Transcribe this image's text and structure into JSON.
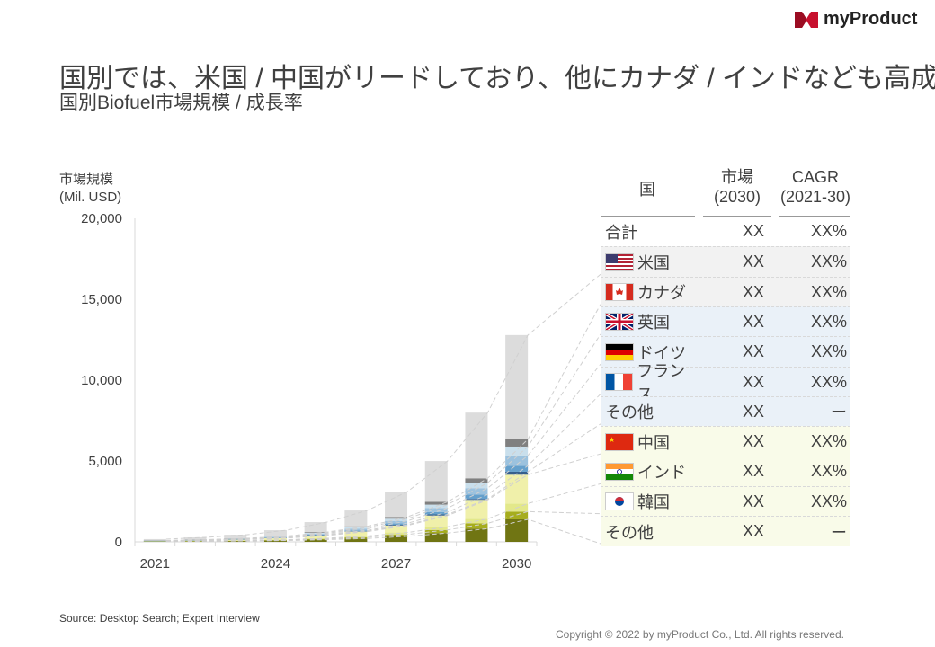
{
  "title": "国別では、米国 / 中国がリードしており、他にカナダ / インドなども高成長",
  "subtitle": "国別Biofuel市場規模 / 成長率",
  "logo": "myProduct",
  "source": "Source: Desktop Search; Expert Interview",
  "copyright": "Copyright © 2022 by myProduct Co., Ltd.  All rights reserved.",
  "chart_data": {
    "type": "bar",
    "stacked": true,
    "ylabel": "市場規模\n(Mil. USD)",
    "ylabel_lines": [
      "市場規模",
      "(Mil. USD)"
    ],
    "ylim": [
      0,
      20000
    ],
    "yticks": [
      "0",
      "5,000",
      "10,000",
      "15,000",
      "20,000"
    ],
    "ytick_values": [
      0,
      5000,
      10000,
      15000,
      20000
    ],
    "categories": [
      2021,
      2022,
      2023,
      2024,
      2025,
      2026,
      2027,
      2028,
      2029,
      2030
    ],
    "xtick_labels": [
      "2021",
      "2024",
      "2027",
      "2030"
    ],
    "xtick_years": [
      2021,
      2024,
      2027,
      2030
    ],
    "series_bottom_to_top": [
      {
        "key": "asia_other",
        "color": "#707513",
        "values": [
          19,
          32,
          50,
          80,
          135,
          210,
          340,
          545,
          815,
          1390
        ]
      },
      {
        "key": "kr",
        "color": "#a6ad1e",
        "values": [
          6,
          10,
          15,
          25,
          45,
          75,
          120,
          190,
          330,
          480
        ]
      },
      {
        "key": "in",
        "color": "#e3e88a",
        "values": [
          7,
          10,
          20,
          30,
          45,
          75,
          120,
          195,
          280,
          500
        ]
      },
      {
        "key": "cn",
        "color": "#f0f0aa",
        "values": [
          24,
          40,
          60,
          100,
          170,
          270,
          430,
          695,
          1170,
          1780
        ]
      },
      {
        "key": "eu_other",
        "color": "#355e8c",
        "values": [
          3,
          4,
          5,
          10,
          20,
          25,
          45,
          70,
          55,
          185
        ]
      },
      {
        "key": "fr",
        "color": "#65a0cc",
        "values": [
          5,
          8,
          15,
          20,
          35,
          55,
          90,
          145,
          280,
          370
        ]
      },
      {
        "key": "de",
        "color": "#9cc2de",
        "values": [
          8,
          14,
          20,
          35,
          60,
          95,
          150,
          245,
          390,
          630
        ]
      },
      {
        "key": "uk",
        "color": "#c9dfec",
        "values": [
          7,
          12,
          20,
          30,
          50,
          85,
          135,
          215,
          330,
          555
        ]
      },
      {
        "key": "ca",
        "color": "#808080",
        "values": [
          6,
          10,
          15,
          25,
          45,
          70,
          110,
          175,
          280,
          445
        ]
      },
      {
        "key": "us",
        "color": "#dcdcdc",
        "values": [
          85,
          140,
          220,
          365,
          615,
          980,
          1560,
          2520,
          4060,
          6450
        ]
      }
    ]
  },
  "table": {
    "headers": {
      "country": "国",
      "market_l1": "市場",
      "market_l2": "(2030)",
      "cagr_l1": "CAGR",
      "cagr_l2": "(2021-30)"
    },
    "rows": [
      {
        "key": "total",
        "name": "合計",
        "market": "XX",
        "cagr": "XX%",
        "bg": "#ffffff",
        "flag": ""
      },
      {
        "key": "us",
        "name": "米国",
        "market": "XX",
        "cagr": "XX%",
        "bg": "#f2f2f2",
        "flag": "us-flag"
      },
      {
        "key": "ca",
        "name": "カナダ",
        "market": "XX",
        "cagr": "XX%",
        "bg": "#f2f2f2",
        "flag": "canada-flag"
      },
      {
        "key": "uk",
        "name": "英国",
        "market": "XX",
        "cagr": "XX%",
        "bg": "#eaf1f8",
        "flag": "uk-flag"
      },
      {
        "key": "de",
        "name": "ドイツ",
        "market": "XX",
        "cagr": "XX%",
        "bg": "#eaf1f8",
        "flag": "germany-flag"
      },
      {
        "key": "fr",
        "name": "フランス",
        "market": "XX",
        "cagr": "XX%",
        "bg": "#eaf1f8",
        "flag": "france-flag"
      },
      {
        "key": "eu_other",
        "name": "その他",
        "market": "XX",
        "cagr": "ー",
        "bg": "#eaf1f8",
        "flag": ""
      },
      {
        "key": "cn",
        "name": "中国",
        "market": "XX",
        "cagr": "XX%",
        "bg": "#f9fbe9",
        "flag": "china-flag"
      },
      {
        "key": "in",
        "name": "インド",
        "market": "XX",
        "cagr": "XX%",
        "bg": "#f9fbe9",
        "flag": "india-flag"
      },
      {
        "key": "kr",
        "name": "韓国",
        "market": "XX",
        "cagr": "XX%",
        "bg": "#f9fbe9",
        "flag": "korea-flag"
      },
      {
        "key": "asia_other",
        "name": "その他",
        "market": "XX",
        "cagr": "ー",
        "bg": "#f9fbe9",
        "flag": ""
      }
    ]
  }
}
